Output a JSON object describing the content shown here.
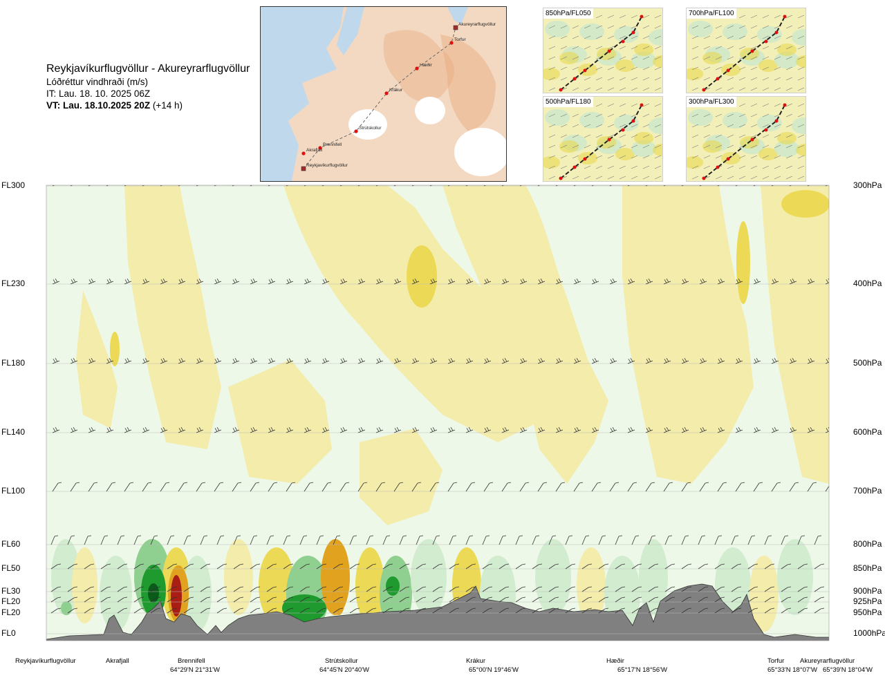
{
  "title": {
    "route": "Reykjavíkurflugvöllur - Akureyrarflugvöllur",
    "parameter": "Lóðréttur vindhraði (m/s)",
    "issue_time": "IT: Lau. 18. 10. 2025 06Z",
    "valid_time": "VT: Lau. 18.10.2025 20Z",
    "lead": "(+14 h)"
  },
  "route_map": {
    "waypoints": [
      {
        "name": "Akureyrarflugvöllur",
        "kind": "airport"
      },
      {
        "name": "Torfur",
        "kind": "point"
      },
      {
        "name": "Hæðir",
        "kind": "point"
      },
      {
        "name": "Krákur",
        "kind": "point"
      },
      {
        "name": "Strútskollur",
        "kind": "point"
      },
      {
        "name": "Brennifell",
        "kind": "point"
      },
      {
        "name": "Akrafjall",
        "kind": "point"
      },
      {
        "name": "Reykjavíkurflugvöllur",
        "kind": "airport"
      }
    ]
  },
  "mini_panels": [
    {
      "label": "850hPa/FL050"
    },
    {
      "label": "700hPa/FL100"
    },
    {
      "label": "500hPa/FL180"
    },
    {
      "label": "300hPa/FL300"
    }
  ],
  "levels": [
    {
      "fl": "FL300",
      "hpa": "300hPa"
    },
    {
      "fl": "FL230",
      "hpa": "400hPa"
    },
    {
      "fl": "FL180",
      "hpa": "500hPa"
    },
    {
      "fl": "FL140",
      "hpa": "600hPa"
    },
    {
      "fl": "FL100",
      "hpa": "700hPa"
    },
    {
      "fl": "FL60",
      "hpa": "800hPa"
    },
    {
      "fl": "FL50",
      "hpa": "850hPa"
    },
    {
      "fl": "FL30",
      "hpa": "900hPa"
    },
    {
      "fl": "FL20",
      "hpa": "925hPa"
    },
    {
      "fl": "FL20",
      "hpa": "950hPa"
    },
    {
      "fl": "FL0",
      "hpa": "1000hPa"
    }
  ],
  "bottom_locations": [
    {
      "name": "Reykjavíkurflugvöllur",
      "coord": ""
    },
    {
      "name": "Akrafjall",
      "coord": ""
    },
    {
      "name": "Brennifell",
      "coord": "64°29'N 21°31'W"
    },
    {
      "name": "Strútskollur",
      "coord": "64°45'N 20°40'W"
    },
    {
      "name": "Krákur",
      "coord": "65°00'N 19°46'W"
    },
    {
      "name": "Hæðir",
      "coord": "65°17'N 18°56'W"
    },
    {
      "name": "Torfur",
      "coord": "65°33'N 18°07'W"
    },
    {
      "name": "Akureyrarflugvöllur",
      "coord": "65°39'N 18°04'W"
    }
  ],
  "colors": {
    "updraft_light": "#f4ecab",
    "updraft_mid": "#ecd955",
    "updraft_strong": "#e0a21f",
    "updraft_max": "#a81e14",
    "downdraft_light": "#d2ecd0",
    "downdraft_mid": "#8fcf8f",
    "downdraft_strong": "#1f9a2e",
    "neutral": "#eef8e8",
    "terrain": "#808080",
    "route_point": "#e01010"
  }
}
